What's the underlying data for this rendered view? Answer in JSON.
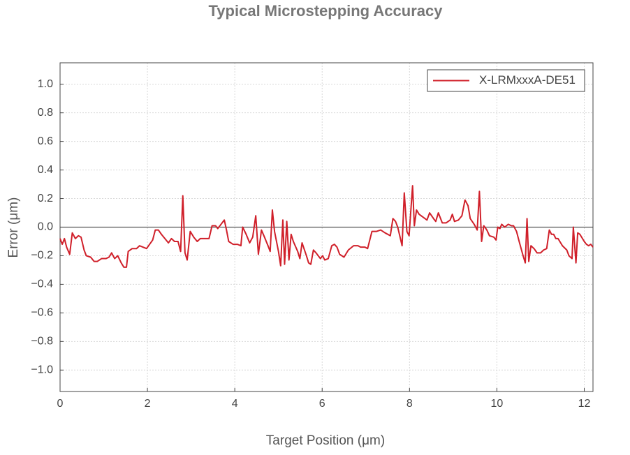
{
  "chart_data": {
    "type": "line",
    "title": "Typical Microstepping Accuracy",
    "xlabel": "Target Position (μm)",
    "ylabel": "Error (μm)",
    "legend": "upper right",
    "grid": true,
    "xlim": [
      0,
      12.2
    ],
    "ylim": [
      -1.15,
      1.15
    ],
    "xticks": [
      0,
      2,
      4,
      6,
      8,
      10,
      12
    ],
    "yticks": [
      {
        "value": 1.0,
        "label": "1.0"
      },
      {
        "value": 0.8,
        "label": "0.8"
      },
      {
        "value": 0.6,
        "label": "0.6"
      },
      {
        "value": 0.4,
        "label": "0.4"
      },
      {
        "value": 0.2,
        "label": "0.2"
      },
      {
        "value": 0.0,
        "label": "0.0"
      },
      {
        "value": -0.2,
        "label": "−0.2"
      },
      {
        "value": -0.4,
        "label": "−0.4"
      },
      {
        "value": -0.6,
        "label": "−0.6"
      },
      {
        "value": -0.8,
        "label": "−0.8"
      },
      {
        "value": -1.0,
        "label": "−1.0"
      }
    ],
    "x": [
      0,
      0.05,
      0.1,
      0.15,
      0.22,
      0.28,
      0.35,
      0.42,
      0.48,
      0.55,
      0.6,
      0.7,
      0.78,
      0.85,
      0.95,
      1.05,
      1.12,
      1.18,
      1.25,
      1.32,
      1.4,
      1.46,
      1.52,
      1.56,
      1.65,
      1.75,
      1.82,
      1.9,
      1.98,
      2.05,
      2.12,
      2.18,
      2.25,
      2.32,
      2.4,
      2.48,
      2.55,
      2.62,
      2.7,
      2.76,
      2.81,
      2.86,
      2.91,
      2.98,
      3.06,
      3.14,
      3.21,
      3.31,
      3.41,
      3.48,
      3.56,
      3.61,
      3.66,
      3.76,
      3.81,
      3.86,
      3.96,
      4.06,
      4.14,
      4.18,
      4.26,
      4.34,
      4.41,
      4.48,
      4.54,
      4.61,
      4.68,
      4.76,
      4.81,
      4.86,
      4.91,
      5.0,
      5.05,
      5.1,
      5.14,
      5.19,
      5.24,
      5.29,
      5.34,
      5.44,
      5.49,
      5.54,
      5.64,
      5.69,
      5.74,
      5.8,
      5.86,
      5.96,
      6.01,
      6.06,
      6.14,
      6.22,
      6.28,
      6.34,
      6.4,
      6.5,
      6.6,
      6.72,
      6.82,
      6.88,
      6.98,
      7.04,
      7.14,
      7.24,
      7.34,
      7.44,
      7.56,
      7.62,
      7.68,
      7.73,
      7.83,
      7.88,
      7.94,
      7.99,
      8.07,
      8.11,
      8.16,
      8.22,
      8.31,
      8.4,
      8.46,
      8.55,
      8.6,
      8.66,
      8.75,
      8.84,
      8.93,
      8.98,
      9.03,
      9.12,
      9.2,
      9.27,
      9.34,
      9.39,
      9.48,
      9.55,
      9.6,
      9.65,
      9.7,
      9.77,
      9.83,
      9.93,
      9.98,
      10.02,
      10.07,
      10.11,
      10.18,
      10.26,
      10.33,
      10.38,
      10.45,
      10.51,
      10.6,
      10.65,
      10.69,
      10.73,
      10.78,
      10.85,
      10.92,
      11.0,
      11.07,
      11.14,
      11.2,
      11.25,
      11.3,
      11.35,
      11.4,
      11.5,
      11.6,
      11.65,
      11.72,
      11.75,
      11.81,
      11.85,
      11.9,
      12.0,
      12.05,
      12.1,
      12.15,
      12.2
    ],
    "series": [
      {
        "name": "X-LRMxxxA-DE51",
        "color": "#d0202a",
        "values": [
          -0.08,
          -0.12,
          -0.08,
          -0.14,
          -0.19,
          -0.04,
          -0.08,
          -0.06,
          -0.07,
          -0.16,
          -0.2,
          -0.21,
          -0.24,
          -0.24,
          -0.22,
          -0.22,
          -0.21,
          -0.18,
          -0.22,
          -0.2,
          -0.25,
          -0.28,
          -0.28,
          -0.17,
          -0.15,
          -0.15,
          -0.13,
          -0.14,
          -0.15,
          -0.12,
          -0.09,
          -0.02,
          -0.02,
          -0.05,
          -0.08,
          -0.11,
          -0.08,
          -0.1,
          -0.1,
          -0.17,
          0.22,
          -0.18,
          -0.23,
          -0.03,
          -0.07,
          -0.1,
          -0.08,
          -0.08,
          -0.08,
          0.01,
          0.01,
          -0.01,
          0.01,
          0.05,
          -0.02,
          -0.1,
          -0.12,
          -0.12,
          -0.13,
          0.0,
          -0.05,
          -0.11,
          -0.07,
          0.08,
          -0.19,
          -0.02,
          -0.07,
          -0.13,
          -0.17,
          0.12,
          -0.03,
          -0.17,
          -0.27,
          0.05,
          -0.26,
          0.04,
          -0.23,
          -0.05,
          -0.1,
          -0.17,
          -0.22,
          -0.11,
          -0.2,
          -0.25,
          -0.26,
          -0.16,
          -0.18,
          -0.22,
          -0.2,
          -0.23,
          -0.22,
          -0.13,
          -0.12,
          -0.14,
          -0.19,
          -0.21,
          -0.16,
          -0.13,
          -0.13,
          -0.14,
          -0.14,
          -0.15,
          -0.03,
          -0.03,
          -0.02,
          -0.04,
          -0.06,
          0.06,
          0.04,
          0.0,
          -0.13,
          0.24,
          -0.03,
          -0.06,
          0.29,
          0.01,
          0.12,
          0.09,
          0.07,
          0.05,
          0.1,
          0.06,
          0.04,
          0.1,
          0.03,
          0.03,
          0.05,
          0.09,
          0.04,
          0.05,
          0.08,
          0.19,
          0.15,
          0.06,
          0.02,
          -0.02,
          0.25,
          -0.1,
          0.01,
          -0.02,
          -0.06,
          -0.07,
          -0.09,
          0.0,
          -0.01,
          0.02,
          0.0,
          0.02,
          0.01,
          0.01,
          -0.03,
          -0.1,
          -0.2,
          -0.25,
          0.06,
          -0.24,
          -0.13,
          -0.15,
          -0.18,
          -0.18,
          -0.16,
          -0.15,
          -0.02,
          -0.05,
          -0.05,
          -0.08,
          -0.08,
          -0.13,
          -0.16,
          -0.2,
          -0.22,
          0.0,
          -0.25,
          -0.04,
          -0.05,
          -0.1,
          -0.12,
          -0.13,
          -0.12,
          -0.14
        ]
      }
    ]
  }
}
